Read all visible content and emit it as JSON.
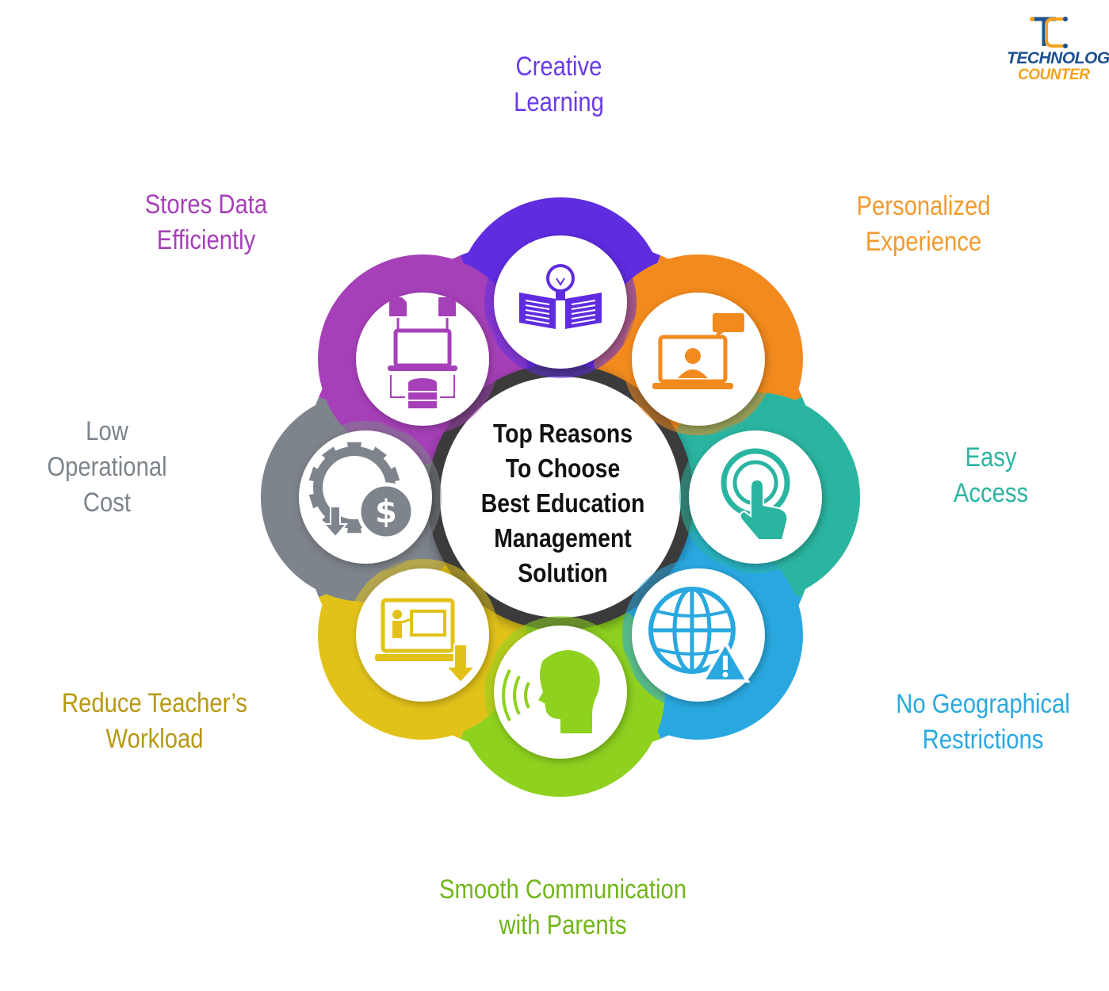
{
  "center": {
    "lines": [
      "Top Reasons",
      "To Choose",
      "Best Education",
      "Management",
      "Solution"
    ]
  },
  "segments": [
    {
      "id": "creative-learning",
      "lines": [
        "Creative",
        "Learning"
      ],
      "color": "#5f2ce0",
      "icon": "book-lightbulb-icon"
    },
    {
      "id": "personalized-experience",
      "lines": [
        "Personalized",
        "Experience"
      ],
      "color": "#f28a1e",
      "icon": "laptop-video-chat-icon"
    },
    {
      "id": "easy-access",
      "lines": [
        "Easy",
        "Access"
      ],
      "color": "#2ab5a1",
      "icon": "touch-button-icon"
    },
    {
      "id": "no-geographical-restrictions",
      "lines": [
        "No Geographical",
        "Restrictions"
      ],
      "color": "#29a8e0",
      "icon": "globe-warning-icon"
    },
    {
      "id": "smooth-communication",
      "lines": [
        "Smooth Communication",
        "with Parents"
      ],
      "color": "#8ed11f",
      "icon": "speaking-head-icon"
    },
    {
      "id": "reduce-teacher-workload",
      "lines": [
        "Reduce Teacher’s",
        "Workload"
      ],
      "color": "#e2c219",
      "icon": "laptop-presentation-icon"
    },
    {
      "id": "low-operational-cost",
      "lines": [
        "Low",
        "Operational",
        "Cost"
      ],
      "color": "#7d848b",
      "icon": "gear-dollar-icon"
    },
    {
      "id": "stores-data-efficiently",
      "lines": [
        "Stores Data",
        "Efficiently"
      ],
      "color": "#a640b8",
      "icon": "data-storage-icon"
    }
  ],
  "label_colors": {
    "creative-learning": "#6a3be6",
    "personalized-experience": "#f39a2c",
    "easy-access": "#2ab5a1",
    "no-geographical-restrictions": "#29a8e0",
    "smooth-communication": "#72b51a",
    "reduce-teacher-workload": "#b8980f",
    "low-operational-cost": "#7d848b",
    "stores-data-efficiently": "#a640b8"
  },
  "logo": {
    "letters": "TC",
    "line1": "ECHNOLOGY",
    "line2": "OUNTER",
    "color_primary": "#1d4f91",
    "color_accent": "#f5a21b"
  }
}
